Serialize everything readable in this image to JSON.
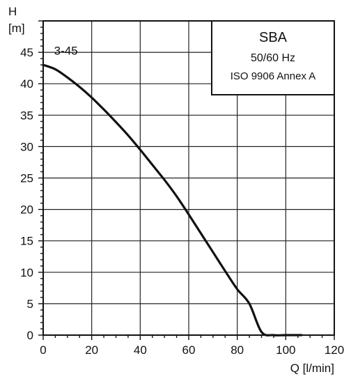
{
  "chart_data": {
    "type": "line",
    "title": "SBA",
    "legend_box": {
      "line1": "SBA",
      "line2": "50/60 Hz",
      "line3": "ISO 9906 Annex A",
      "placement": "top-right"
    },
    "xlabel": "Q [l/min]",
    "ylabel_line1": "H",
    "ylabel_line2": "[m]",
    "xlim": [
      0,
      120
    ],
    "ylim": [
      0,
      50
    ],
    "x_ticks": [
      0,
      20,
      40,
      60,
      80,
      100,
      120
    ],
    "y_ticks": [
      0,
      5,
      10,
      15,
      20,
      25,
      30,
      35,
      40,
      45
    ],
    "grid": true,
    "series": [
      {
        "name": "3-45",
        "x": [
          0,
          5,
          10,
          15,
          20,
          25,
          30,
          35,
          40,
          45,
          50,
          55,
          60,
          65,
          70,
          75,
          80,
          85,
          90,
          95,
          100,
          106.5
        ],
        "y": [
          43,
          42.3,
          41,
          39.5,
          37.8,
          35.9,
          33.9,
          31.8,
          29.5,
          27.1,
          24.7,
          22.1,
          19.2,
          16.2,
          13.2,
          10.2,
          7.3,
          5.0,
          0.5,
          0,
          0,
          0
        ]
      }
    ]
  }
}
